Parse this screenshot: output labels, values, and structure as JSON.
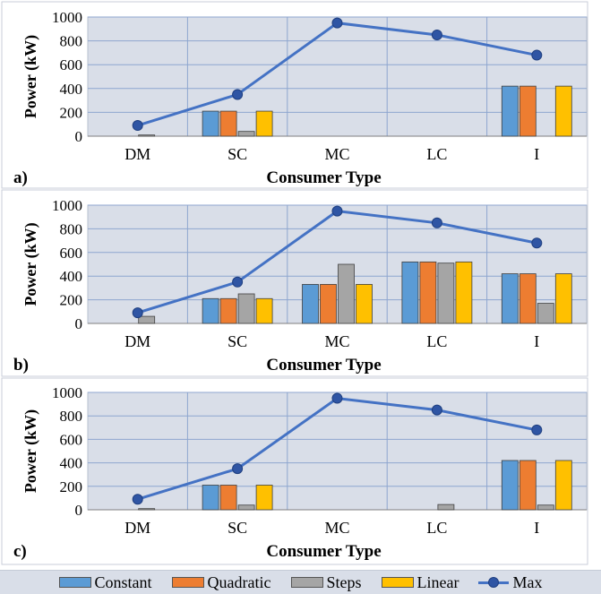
{
  "colors": {
    "Constant": "#5b9bd5",
    "Quadratic": "#ed7d31",
    "Steps": "#a5a5a5",
    "Linear": "#ffc000",
    "Max": "#4472c4",
    "plot_background": "#d9dee8",
    "gridline": "#8ea6cf"
  },
  "chart_data": [
    {
      "type": "bar",
      "panel_label": "a)",
      "xlabel": "Consumer Type",
      "ylabel": "Power (kW)",
      "ylim": [
        0,
        1000
      ],
      "yticks": [
        "0",
        "200",
        "400",
        "600",
        "800",
        "1000"
      ],
      "grid": true,
      "categories": [
        "DM",
        "SC",
        "MC",
        "LC",
        "I"
      ],
      "series": [
        {
          "name": "Constant",
          "values": [
            0,
            210,
            0,
            0,
            420
          ]
        },
        {
          "name": "Quadratic",
          "values": [
            0,
            210,
            0,
            0,
            420
          ]
        },
        {
          "name": "Steps",
          "values": [
            10,
            40,
            0,
            0,
            0
          ]
        },
        {
          "name": "Linear",
          "values": [
            0,
            210,
            0,
            0,
            420
          ]
        }
      ],
      "line_series": {
        "name": "Max",
        "values": [
          90,
          350,
          950,
          850,
          680
        ]
      }
    },
    {
      "type": "bar",
      "panel_label": "b)",
      "xlabel": "Consumer Type",
      "ylabel": "Power (kW)",
      "ylim": [
        0,
        1000
      ],
      "yticks": [
        "0",
        "200",
        "400",
        "600",
        "800",
        "1000"
      ],
      "grid": true,
      "categories": [
        "DM",
        "SC",
        "MC",
        "LC",
        "I"
      ],
      "series": [
        {
          "name": "Constant",
          "values": [
            0,
            210,
            330,
            520,
            420
          ]
        },
        {
          "name": "Quadratic",
          "values": [
            0,
            210,
            330,
            520,
            420
          ]
        },
        {
          "name": "Steps",
          "values": [
            60,
            250,
            500,
            510,
            170
          ]
        },
        {
          "name": "Linear",
          "values": [
            0,
            210,
            330,
            520,
            420
          ]
        }
      ],
      "line_series": {
        "name": "Max",
        "values": [
          90,
          350,
          950,
          850,
          680
        ]
      }
    },
    {
      "type": "bar",
      "panel_label": "c)",
      "xlabel": "Consumer Type",
      "ylabel": "Power (kW)",
      "ylim": [
        0,
        1000
      ],
      "yticks": [
        "0",
        "200",
        "400",
        "600",
        "800",
        "1000"
      ],
      "grid": true,
      "categories": [
        "DM",
        "SC",
        "MC",
        "LC",
        "I"
      ],
      "series": [
        {
          "name": "Constant",
          "values": [
            0,
            210,
            0,
            0,
            420
          ]
        },
        {
          "name": "Quadratic",
          "values": [
            0,
            210,
            0,
            0,
            420
          ]
        },
        {
          "name": "Steps",
          "values": [
            10,
            40,
            0,
            45,
            40
          ]
        },
        {
          "name": "Linear",
          "values": [
            0,
            210,
            0,
            0,
            420
          ]
        }
      ],
      "line_series": {
        "name": "Max",
        "values": [
          90,
          350,
          950,
          850,
          680
        ]
      }
    }
  ],
  "legend": {
    "items": [
      "Constant",
      "Quadratic",
      "Steps",
      "Linear",
      "Max"
    ]
  }
}
